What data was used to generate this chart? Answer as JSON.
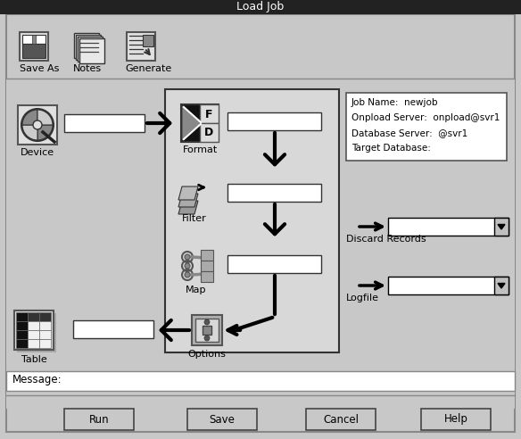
{
  "title": "Load Job",
  "bg_color": "#c0c0c0",
  "white": "#ffffff",
  "black": "#000000",
  "toolbar_labels": [
    "Save As",
    "Notes",
    "Generate"
  ],
  "job_info_lines": [
    "Job Name:  newjob",
    "Onpload Server:  onpload@svr1",
    "Database Server:  @svr1",
    "Target Database:"
  ],
  "bottom_buttons": [
    "Run",
    "Save",
    "Cancel",
    "Help"
  ],
  "message_label": "Message:"
}
